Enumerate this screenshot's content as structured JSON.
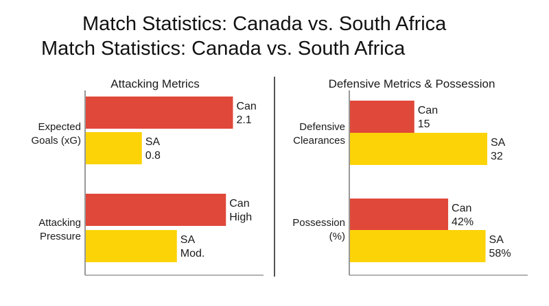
{
  "header": {
    "title": "Match Statistics: Canada vs. South Africa",
    "title_repeat": "Match Statistics:  Canada vs. South Africa"
  },
  "chart_data": [
    {
      "type": "bar",
      "orientation": "horizontal",
      "title": "Attacking Metrics",
      "categories": [
        [
          "Expected",
          "Goals (xG)"
        ],
        [
          "Attacking",
          "Pressure"
        ]
      ],
      "series": [
        {
          "name": "Can",
          "color": "#e0483a",
          "values": [
            2.1,
            2.0
          ],
          "labels": [
            "2.1",
            "High"
          ]
        },
        {
          "name": "SA",
          "color": "#fcd307",
          "values": [
            0.8,
            1.3
          ],
          "labels": [
            "0.8",
            "Mod."
          ]
        }
      ],
      "xlim": [
        0,
        2.65
      ]
    },
    {
      "type": "bar",
      "orientation": "horizontal",
      "title": "Defensive Metrics & Possession",
      "categories": [
        [
          "Defensive",
          "Clearances"
        ],
        [
          "Possession",
          "(%)"
        ]
      ],
      "series": [
        {
          "name": "Can",
          "color": "#e0483a",
          "values": [
            15,
            42
          ],
          "labels": [
            "15",
            "42%"
          ]
        },
        {
          "name": "SA",
          "color": "#fcd307",
          "values": [
            32,
            58
          ],
          "labels": [
            "32",
            "58%"
          ]
        }
      ],
      "xlim": [
        0,
        100
      ],
      "panel_scales": [
        [
          0,
          37.6
        ],
        [
          0,
          69
        ]
      ]
    }
  ]
}
